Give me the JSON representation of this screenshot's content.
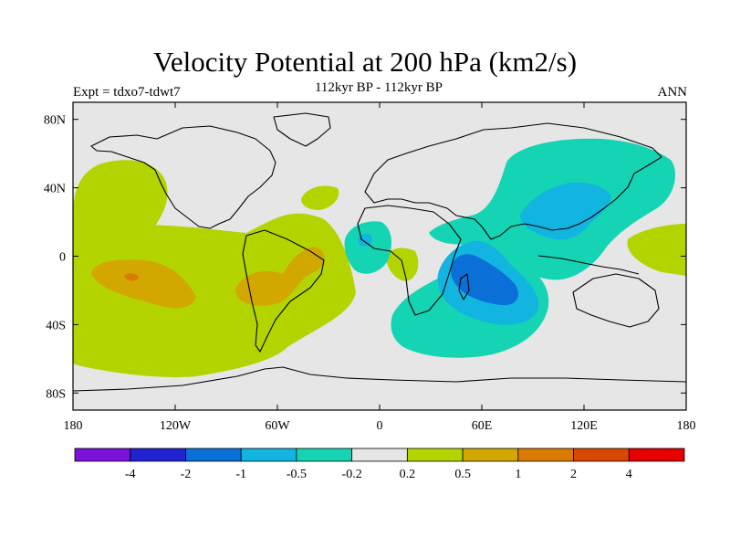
{
  "chart_data": {
    "type": "heatmap",
    "title": "Velocity Potential at 200 hPa (km2/s)",
    "subtitle": "112kyr BP - 112kyr BP",
    "left_label": "Expt = tdxo7-tdwt7",
    "right_label": "ANN",
    "x_axis": {
      "range": [
        -180,
        180
      ],
      "ticks": [
        -180,
        -120,
        -60,
        0,
        60,
        120,
        180
      ],
      "tick_labels": [
        "180",
        "120W",
        "60W",
        "0",
        "60E",
        "120E",
        "180"
      ]
    },
    "y_axis": {
      "range": [
        -90,
        90
      ],
      "ticks": [
        80,
        40,
        0,
        -40,
        -80
      ],
      "tick_labels": [
        "80N",
        "40N",
        "0",
        "40S",
        "80S"
      ]
    },
    "colorbar": {
      "labels": [
        "-4",
        "-2",
        "-1",
        "-0.5",
        "-0.2",
        "0.2",
        "0.5",
        "1",
        "2",
        "4"
      ],
      "colors": [
        "#7a12d8",
        "#2222d0",
        "#0a6fd6",
        "#12b4e0",
        "#14d4b4",
        "#e6e6e6",
        "#b4d400",
        "#d2a800",
        "#da7a00",
        "#d84800",
        "#e60000"
      ]
    },
    "regions": [
      {
        "name": "north-pacific-positive",
        "level": 0.2,
        "center": [
          -120,
          30
        ]
      },
      {
        "name": "tropical-pacific-positive",
        "level": 0.2,
        "center": [
          -110,
          -20
        ]
      },
      {
        "name": "central-pacific-high",
        "level": 0.5,
        "center": [
          -140,
          -15
        ]
      },
      {
        "name": "central-pacific-peak",
        "level": 1,
        "center": [
          -142,
          -14
        ]
      },
      {
        "name": "south-america-positive",
        "level": 0.5,
        "center": [
          -55,
          -15
        ]
      },
      {
        "name": "north-atlantic-positive",
        "level": 0.2,
        "center": [
          -35,
          38
        ]
      },
      {
        "name": "west-africa-negative",
        "level": -0.2,
        "center": [
          0,
          5
        ]
      },
      {
        "name": "asia-negative",
        "level": -0.2,
        "center": [
          105,
          40
        ]
      },
      {
        "name": "east-asia-more-negative",
        "level": -0.5,
        "center": [
          110,
          30
        ]
      },
      {
        "name": "indian-ocean-negative",
        "level": -0.5,
        "center": [
          60,
          -20
        ]
      },
      {
        "name": "indian-ocean-minimum",
        "level": -1,
        "center": [
          55,
          -20
        ]
      },
      {
        "name": "southern-ocean-negative",
        "level": -0.2,
        "center": [
          60,
          -45
        ]
      },
      {
        "name": "west-pacific-positive",
        "level": 0.2,
        "center": [
          165,
          10
        ]
      }
    ]
  }
}
